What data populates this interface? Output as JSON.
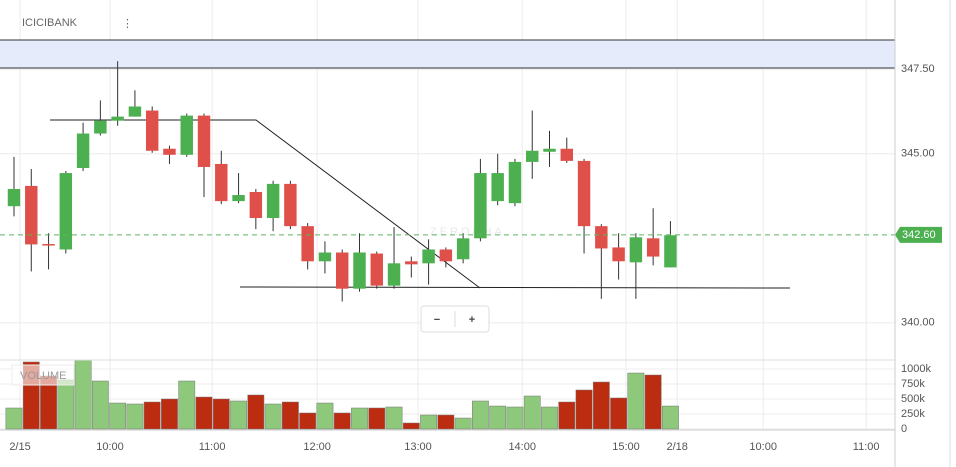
{
  "chart_data": {
    "type": "candlestick",
    "title": "ICICIBANK",
    "menu": "⋮",
    "watermark": "ZERODHA",
    "volume_label": "VOLUME",
    "zoom_out": "−",
    "zoom_in": "+",
    "up_color": "#4caf50",
    "down_color": "#e0504a",
    "volume_up_color": "#8dc87b",
    "volume_down_color": "#bb2c10",
    "grid": true,
    "open": [
      343.45,
      344.05,
      342.33,
      342.17,
      344.58,
      345.6,
      345.98,
      346.1,
      346.28,
      345.15,
      344.97,
      346.13,
      344.7,
      343.6,
      343.87,
      343.1,
      344.11,
      342.86,
      341.82,
      342.08,
      341.01,
      342.05,
      341.1,
      341.82,
      341.76,
      342.17,
      341.88,
      342.5,
      343.6,
      343.54,
      344.76,
      345.06,
      345.15,
      344.79,
      342.86,
      342.23,
      341.79,
      342.5,
      341.64
    ],
    "high": [
      344.91,
      344.55,
      342.65,
      344.49,
      345.92,
      346.58,
      347.74,
      346.88,
      346.4,
      345.24,
      346.19,
      346.19,
      345.09,
      344.43,
      343.96,
      344.2,
      344.2,
      342.95,
      342.41,
      342.17,
      342.65,
      342.11,
      342.83,
      341.96,
      342.47,
      342.23,
      342.65,
      344.85,
      345.0,
      344.85,
      346.28,
      345.68,
      345.48,
      344.85,
      342.92,
      342.65,
      342.65,
      343.39,
      343.01
    ],
    "low": [
      343.15,
      341.52,
      341.58,
      342.05,
      344.49,
      345.54,
      345.83,
      346.1,
      345.03,
      344.7,
      344.91,
      343.72,
      343.51,
      343.54,
      342.77,
      342.71,
      342.77,
      341.58,
      341.46,
      340.63,
      340.92,
      341.01,
      341.01,
      341.34,
      341.13,
      341.64,
      341.76,
      342.41,
      343.48,
      343.45,
      344.26,
      344.61,
      344.73,
      342.05,
      340.71,
      341.28,
      340.71,
      341.7,
      341.64
    ],
    "close": [
      343.96,
      342.32,
      342.32,
      344.43,
      345.6,
      345.98,
      346.1,
      346.4,
      345.09,
      344.97,
      346.13,
      344.61,
      343.6,
      343.78,
      343.1,
      344.11,
      342.86,
      341.82,
      342.08,
      341.01,
      342.08,
      341.1,
      341.76,
      341.73,
      342.17,
      341.82,
      342.5,
      344.43,
      344.43,
      344.76,
      345.09,
      345.15,
      344.79,
      342.86,
      342.2,
      341.82,
      342.53,
      341.96,
      342.59
    ],
    "volume": [
      350,
      1117,
      883,
      817,
      1150,
      800,
      433,
      417,
      450,
      500,
      800,
      533,
      500,
      467,
      567,
      417,
      450,
      267,
      433,
      267,
      350,
      350,
      367,
      100,
      233,
      233,
      183,
      467,
      383,
      367,
      550,
      367,
      450,
      650,
      783,
      517,
      933,
      900,
      383
    ],
    "last_price": {
      "value": 342.6,
      "label": "342.60"
    },
    "xlim": [
      -0.81,
      51.0
    ],
    "xticks": [
      {
        "value": 0.35,
        "label": "2/15"
      },
      {
        "value": 5.56,
        "label": "10:00"
      },
      {
        "value": 11.47,
        "label": "11:00"
      },
      {
        "value": 17.55,
        "label": "12:00"
      },
      {
        "value": 23.39,
        "label": "13:00"
      },
      {
        "value": 29.42,
        "label": "14:00"
      },
      {
        "value": 35.43,
        "label": "15:00"
      },
      {
        "value": 38.39,
        "label": "2/18"
      },
      {
        "value": 43.37,
        "label": "10:00"
      },
      {
        "value": 49.33,
        "label": "11:00"
      }
    ],
    "ylim": [
      338.9,
      349.55
    ],
    "yticks": [
      {
        "value": 340,
        "label": "340.00"
      },
      {
        "value": 345,
        "label": "345.00"
      },
      {
        "value": 347.5,
        "label": "347.50"
      }
    ],
    "y2lim": [
      0,
      1150
    ],
    "y2ticks": [
      {
        "value": 0,
        "label": "0"
      },
      {
        "value": 250,
        "label": "250k"
      },
      {
        "value": 500,
        "label": "500k"
      },
      {
        "value": 750,
        "label": "750k"
      },
      {
        "value": 1000,
        "label": "1000k"
      }
    ]
  }
}
